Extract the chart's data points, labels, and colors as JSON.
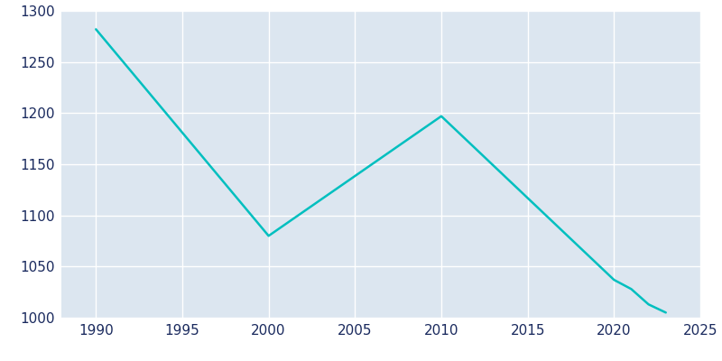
{
  "years": [
    1990,
    2000,
    2010,
    2020,
    2021,
    2022,
    2023
  ],
  "population": [
    1282,
    1080,
    1197,
    1037,
    1028,
    1013,
    1005
  ],
  "line_color": "#00BFBF",
  "axes_background_color": "#dce6f0",
  "figure_background_color": "#ffffff",
  "grid_color": "#ffffff",
  "text_color": "#1a2a5e",
  "ylim": [
    1000,
    1300
  ],
  "xlim": [
    1988,
    2025
  ],
  "yticks": [
    1000,
    1050,
    1100,
    1150,
    1200,
    1250,
    1300
  ],
  "xticks": [
    1990,
    1995,
    2000,
    2005,
    2010,
    2015,
    2020,
    2025
  ],
  "linewidth": 1.8
}
